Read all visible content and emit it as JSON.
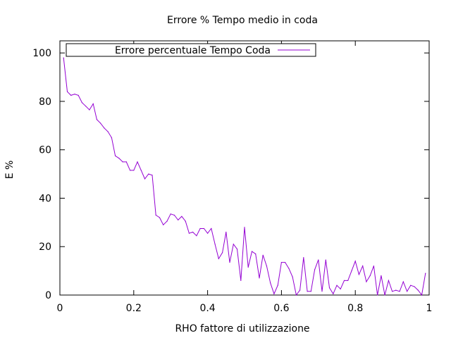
{
  "chart_data": {
    "type": "line",
    "title": "Errore % Tempo medio in coda",
    "xlabel": "RHO fattore di utilizzazione",
    "ylabel": "E %",
    "xlim": [
      0,
      1
    ],
    "ylim": [
      0,
      105
    ],
    "xticks": [
      0,
      0.2,
      0.4,
      0.6,
      0.8,
      1
    ],
    "xtick_labels": [
      "0",
      "0.2",
      "0.4",
      "0.6",
      "0.8",
      "1"
    ],
    "yticks": [
      0,
      20,
      40,
      60,
      80,
      100
    ],
    "ytick_labels": [
      "0",
      "20",
      "40",
      "60",
      "80",
      "100"
    ],
    "grid": false,
    "legend_position": "top-left",
    "series": [
      {
        "name": "Errore percentuale Tempo Coda",
        "color": "#9400d3",
        "x": [
          0.01,
          0.02,
          0.03,
          0.04,
          0.05,
          0.06,
          0.07,
          0.08,
          0.09,
          0.1,
          0.11,
          0.12,
          0.13,
          0.14,
          0.15,
          0.16,
          0.17,
          0.18,
          0.19,
          0.2,
          0.21,
          0.22,
          0.23,
          0.24,
          0.25,
          0.26,
          0.27,
          0.28,
          0.29,
          0.3,
          0.31,
          0.32,
          0.33,
          0.34,
          0.35,
          0.36,
          0.37,
          0.38,
          0.39,
          0.4,
          0.41,
          0.42,
          0.43,
          0.44,
          0.45,
          0.46,
          0.47,
          0.48,
          0.49,
          0.5,
          0.51,
          0.52,
          0.53,
          0.54,
          0.55,
          0.56,
          0.57,
          0.58,
          0.59,
          0.6,
          0.61,
          0.62,
          0.63,
          0.64,
          0.65,
          0.66,
          0.67,
          0.68,
          0.69,
          0.7,
          0.71,
          0.72,
          0.73,
          0.74,
          0.75,
          0.76,
          0.77,
          0.78,
          0.79,
          0.8,
          0.81,
          0.82,
          0.83,
          0.84,
          0.85,
          0.86,
          0.87,
          0.88,
          0.89,
          0.9,
          0.91,
          0.92,
          0.93,
          0.94,
          0.95,
          0.96,
          0.97,
          0.98,
          0.99
        ],
        "y": [
          98,
          84,
          82.5,
          83,
          82.5,
          79.5,
          78,
          76.5,
          79,
          72.5,
          71,
          69,
          67.5,
          65,
          57.5,
          56.5,
          55,
          55,
          51.5,
          51.5,
          55,
          51.5,
          48,
          50,
          49.5,
          33,
          32,
          29,
          30.5,
          33.5,
          33,
          31,
          32.5,
          30.5,
          25.5,
          26,
          24.5,
          27.5,
          27.5,
          25.5,
          27.5,
          21,
          15,
          17.5,
          26,
          13.5,
          21,
          19,
          6,
          28,
          11.5,
          18,
          17,
          7,
          16.5,
          12,
          5,
          0.5,
          4,
          13.5,
          13.5,
          11,
          7.5,
          0,
          2,
          15.5,
          1.5,
          1.5,
          10.5,
          14.5,
          1.5,
          14.5,
          3,
          0.5,
          4,
          2.5,
          6,
          6,
          10,
          14,
          8.5,
          12,
          5.5,
          8,
          12,
          0,
          8,
          0,
          6,
          1.5,
          2,
          1.5,
          5.5,
          1.5,
          4,
          3.5,
          2,
          0,
          9
        ]
      }
    ]
  }
}
